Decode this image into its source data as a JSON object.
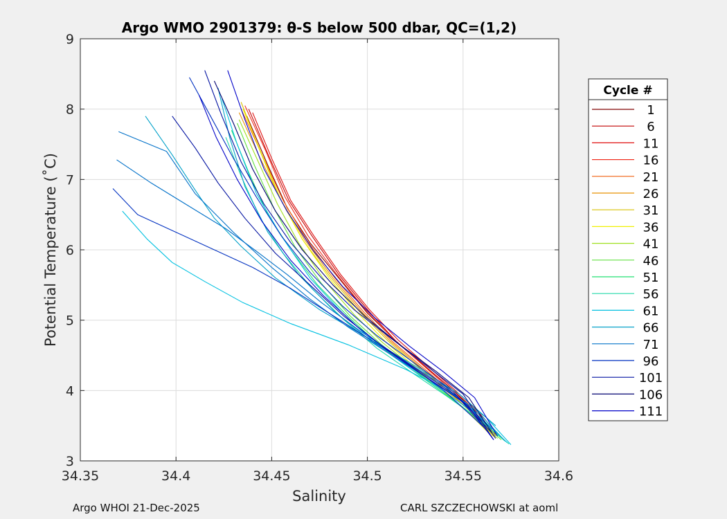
{
  "chart_data": {
    "type": "line",
    "title": "Argo WMO 2901379: θ-S below 500 dbar,  QC=(1,2)",
    "xlabel": "Salinity",
    "ylabel": "Potential Temperature (˚C)",
    "xlim": [
      34.35,
      34.6
    ],
    "ylim": [
      3,
      9
    ],
    "xticks": [
      "34.35",
      "34.4",
      "34.45",
      "34.5",
      "34.55",
      "34.6"
    ],
    "yticks": [
      "3",
      "4",
      "5",
      "6",
      "7",
      "8",
      "9"
    ],
    "grid": true,
    "legend": {
      "title": "Cycle #",
      "placement": "outside-right",
      "entries": [
        {
          "label": "1",
          "color": "#800000"
        },
        {
          "label": "6",
          "color": "#c00000"
        },
        {
          "label": "11",
          "color": "#e01010"
        },
        {
          "label": "16",
          "color": "#f03020"
        },
        {
          "label": "21",
          "color": "#f06010"
        },
        {
          "label": "26",
          "color": "#e89000"
        },
        {
          "label": "31",
          "color": "#d8c000"
        },
        {
          "label": "36",
          "color": "#f0f000"
        },
        {
          "label": "41",
          "color": "#a0e020"
        },
        {
          "label": "46",
          "color": "#60e040"
        },
        {
          "label": "51",
          "color": "#20e070"
        },
        {
          "label": "56",
          "color": "#20d8a8"
        },
        {
          "label": "61",
          "color": "#00c0e0"
        },
        {
          "label": "66",
          "color": "#00a0c8"
        },
        {
          "label": "71",
          "color": "#0070c8"
        },
        {
          "label": "96",
          "color": "#0030c0"
        },
        {
          "label": "101",
          "color": "#0010a0"
        },
        {
          "label": "106",
          "color": "#000070"
        },
        {
          "label": "111",
          "color": "#0000c8"
        }
      ]
    },
    "series": [
      {
        "legend": "1",
        "color": "#800000",
        "s": [
          34.437,
          34.448,
          34.458,
          34.47,
          34.485,
          34.5,
          34.515,
          34.53,
          34.545,
          34.556,
          34.566
        ],
        "t": [
          7.9,
          7.2,
          6.6,
          6.1,
          5.6,
          5.1,
          4.7,
          4.35,
          4.0,
          3.7,
          3.35
        ]
      },
      {
        "legend": "6",
        "color": "#c00000",
        "s": [
          34.438,
          34.449,
          34.459,
          34.471,
          34.485,
          34.5,
          34.515,
          34.53,
          34.545,
          34.557,
          34.567
        ],
        "t": [
          8.0,
          7.3,
          6.7,
          6.2,
          5.65,
          5.15,
          4.7,
          4.35,
          4.0,
          3.7,
          3.38
        ]
      },
      {
        "legend": "11",
        "color": "#e01010",
        "s": [
          34.44,
          34.45,
          34.46,
          34.472,
          34.486,
          34.501,
          34.516,
          34.531,
          34.546,
          34.558,
          34.568
        ],
        "t": [
          7.95,
          7.3,
          6.7,
          6.2,
          5.65,
          5.15,
          4.72,
          4.36,
          4.0,
          3.7,
          3.38
        ]
      },
      {
        "legend": "16",
        "color": "#f03020",
        "s": [
          34.436,
          34.447,
          34.457,
          34.469,
          34.484,
          34.499,
          34.514,
          34.529,
          34.544,
          34.556,
          34.567
        ],
        "t": [
          8.05,
          7.4,
          6.75,
          6.2,
          5.65,
          5.15,
          4.72,
          4.36,
          4.0,
          3.7,
          3.36
        ]
      },
      {
        "legend": "21",
        "color": "#f06010",
        "s": [
          34.434,
          34.445,
          34.456,
          34.468,
          34.483,
          34.498,
          34.513,
          34.528,
          34.543,
          34.555,
          34.566
        ],
        "t": [
          8.0,
          7.35,
          6.7,
          6.15,
          5.6,
          5.12,
          4.7,
          4.35,
          4.0,
          3.7,
          3.36
        ]
      },
      {
        "legend": "26",
        "color": "#e89000",
        "s": [
          34.433,
          34.444,
          34.455,
          34.467,
          34.482,
          34.497,
          34.512,
          34.527,
          34.542,
          34.554,
          34.566
        ],
        "t": [
          7.95,
          7.3,
          6.7,
          6.15,
          5.6,
          5.12,
          4.7,
          4.35,
          4.0,
          3.7,
          3.35
        ]
      },
      {
        "legend": "31",
        "color": "#d8c000",
        "s": [
          34.434,
          34.444,
          34.454,
          34.466,
          34.481,
          34.496,
          34.511,
          34.526,
          34.541,
          34.554,
          34.566
        ],
        "t": [
          8.1,
          7.4,
          6.75,
          6.15,
          5.6,
          5.12,
          4.7,
          4.35,
          4.0,
          3.7,
          3.35
        ]
      },
      {
        "legend": "36",
        "color": "#f0f000",
        "s": [
          34.435,
          34.445,
          34.455,
          34.466,
          34.48,
          34.495,
          34.51,
          34.525,
          34.54,
          34.553,
          34.565
        ],
        "t": [
          8.0,
          7.35,
          6.7,
          6.15,
          5.6,
          5.1,
          4.68,
          4.33,
          3.98,
          3.68,
          3.35
        ]
      },
      {
        "legend": "41",
        "color": "#a0e020",
        "s": [
          34.433,
          34.443,
          34.453,
          34.464,
          34.478,
          34.493,
          34.508,
          34.524,
          34.54,
          34.554,
          34.568
        ],
        "t": [
          7.85,
          7.25,
          6.65,
          6.1,
          5.55,
          5.08,
          4.68,
          4.33,
          3.98,
          3.66,
          3.32
        ]
      },
      {
        "legend": "46",
        "color": "#60e040",
        "s": [
          34.432,
          34.441,
          34.451,
          34.462,
          34.476,
          34.491,
          34.507,
          34.523,
          34.54,
          34.555,
          34.57
        ],
        "t": [
          7.8,
          7.2,
          6.6,
          6.05,
          5.52,
          5.06,
          4.66,
          4.32,
          3.98,
          3.65,
          3.3
        ]
      },
      {
        "legend": "51",
        "color": "#20e070",
        "s": [
          34.429,
          34.438,
          34.448,
          34.46,
          34.474,
          34.49,
          34.506,
          34.523,
          34.54,
          34.556,
          34.572
        ],
        "t": [
          7.7,
          7.1,
          6.5,
          6.0,
          5.5,
          5.05,
          4.65,
          4.3,
          3.96,
          3.64,
          3.28
        ]
      },
      {
        "legend": "56",
        "color": "#20d8a8",
        "s": [
          34.426,
          34.434,
          34.444,
          34.456,
          34.471,
          34.488,
          34.505,
          34.523,
          34.541,
          34.558,
          34.574
        ],
        "t": [
          7.6,
          7.05,
          6.45,
          5.95,
          5.45,
          5.0,
          4.6,
          4.26,
          3.93,
          3.6,
          3.24
        ]
      },
      {
        "legend": "61",
        "color": "#00c0e0",
        "s": [
          34.372,
          34.385,
          34.398,
          34.415,
          34.435,
          34.46,
          34.49,
          34.52,
          34.545,
          34.562,
          34.575
        ],
        "t": [
          6.55,
          6.15,
          5.82,
          5.55,
          5.25,
          4.95,
          4.65,
          4.3,
          3.95,
          3.62,
          3.23
        ]
      },
      {
        "legend": "61",
        "color": "#00c0e0",
        "s": [
          34.424,
          34.432,
          34.442,
          34.455,
          34.47,
          34.487,
          34.505,
          34.523,
          34.542,
          34.559,
          34.573
        ],
        "t": [
          8.15,
          7.5,
          6.8,
          6.2,
          5.6,
          5.1,
          4.65,
          4.3,
          3.95,
          3.62,
          3.26
        ]
      },
      {
        "legend": "66",
        "color": "#00a0c8",
        "s": [
          34.384,
          34.398,
          34.41,
          34.42,
          34.434,
          34.452,
          34.475,
          34.5,
          34.525,
          34.548,
          34.567
        ],
        "t": [
          7.9,
          7.35,
          6.85,
          6.45,
          6.05,
          5.6,
          5.15,
          4.75,
          4.35,
          3.95,
          3.5
        ]
      },
      {
        "legend": "66",
        "color": "#00a0c8",
        "s": [
          34.422,
          34.428,
          34.436,
          34.448,
          34.464,
          34.483,
          34.503,
          34.523,
          34.543,
          34.56,
          34.572
        ],
        "t": [
          8.3,
          7.6,
          6.9,
          6.25,
          5.65,
          5.12,
          4.68,
          4.32,
          3.97,
          3.63,
          3.28
        ]
      },
      {
        "legend": "71",
        "color": "#0070c8",
        "s": [
          34.37,
          34.395,
          34.41,
          34.43,
          34.45,
          34.47,
          34.49,
          34.51,
          34.53,
          34.55,
          34.565
        ],
        "t": [
          7.68,
          7.4,
          6.8,
          6.25,
          5.75,
          5.3,
          4.9,
          4.55,
          4.2,
          3.85,
          3.45
        ]
      },
      {
        "legend": "71",
        "color": "#0070c8",
        "s": [
          34.369,
          34.387,
          34.408,
          34.426,
          34.441,
          34.458,
          34.476,
          34.496,
          34.518,
          34.541,
          34.563
        ],
        "t": [
          7.28,
          6.95,
          6.6,
          6.3,
          6.0,
          5.65,
          5.25,
          4.85,
          4.45,
          4.05,
          3.5
        ]
      },
      {
        "legend": "96",
        "color": "#0030c0",
        "s": [
          34.367,
          34.38,
          34.4,
          34.42,
          34.44,
          34.46,
          34.48,
          34.5,
          34.52,
          34.54,
          34.562
        ],
        "t": [
          6.87,
          6.5,
          6.25,
          6.0,
          5.75,
          5.45,
          5.1,
          4.75,
          4.4,
          4.0,
          3.45
        ]
      },
      {
        "legend": "96",
        "color": "#0030c0",
        "s": [
          34.407,
          34.418,
          34.43,
          34.442,
          34.455,
          34.47,
          34.487,
          34.505,
          34.525,
          34.545,
          34.564
        ],
        "t": [
          8.45,
          7.9,
          7.3,
          6.75,
          6.2,
          5.68,
          5.2,
          4.78,
          4.38,
          3.98,
          3.38
        ]
      },
      {
        "legend": "101",
        "color": "#0010a0",
        "s": [
          34.415,
          34.424,
          34.434,
          34.446,
          34.46,
          34.476,
          34.493,
          34.512,
          34.531,
          34.55,
          34.566
        ],
        "t": [
          8.55,
          7.9,
          7.25,
          6.65,
          6.1,
          5.6,
          5.15,
          4.75,
          4.35,
          3.95,
          3.3
        ]
      },
      {
        "legend": "101",
        "color": "#0010a0",
        "s": [
          34.398,
          34.41,
          34.422,
          34.436,
          34.452,
          34.47,
          34.488,
          34.507,
          34.527,
          34.547,
          34.565
        ],
        "t": [
          7.9,
          7.45,
          6.95,
          6.45,
          5.95,
          5.5,
          5.05,
          4.65,
          4.28,
          3.92,
          3.4
        ]
      },
      {
        "legend": "106",
        "color": "#000070",
        "s": [
          34.42,
          34.43,
          34.44,
          34.452,
          34.466,
          34.482,
          34.499,
          34.517,
          34.536,
          34.553,
          34.567
        ],
        "t": [
          8.4,
          7.8,
          7.15,
          6.55,
          6.0,
          5.5,
          5.05,
          4.65,
          4.27,
          3.9,
          3.32
        ]
      },
      {
        "legend": "111",
        "color": "#0000c8",
        "s": [
          34.427,
          34.436,
          34.446,
          34.458,
          34.472,
          34.487,
          34.504,
          34.522,
          34.54,
          34.556,
          34.568
        ],
        "t": [
          8.55,
          7.85,
          7.15,
          6.55,
          5.98,
          5.48,
          5.03,
          4.63,
          4.26,
          3.9,
          3.35
        ]
      },
      {
        "legend": "111",
        "color": "#0000c8",
        "s": [
          34.412,
          34.421,
          34.432,
          34.445,
          34.46,
          34.477,
          34.495,
          34.514,
          34.533,
          34.552,
          34.566
        ],
        "t": [
          8.2,
          7.6,
          7.0,
          6.4,
          5.85,
          5.35,
          4.9,
          4.5,
          4.15,
          3.8,
          3.3
        ]
      }
    ]
  },
  "footer": {
    "left": "Argo WHOI 21-Dec-2025",
    "right": "CARL SZCZECHOWSKI at aoml"
  }
}
